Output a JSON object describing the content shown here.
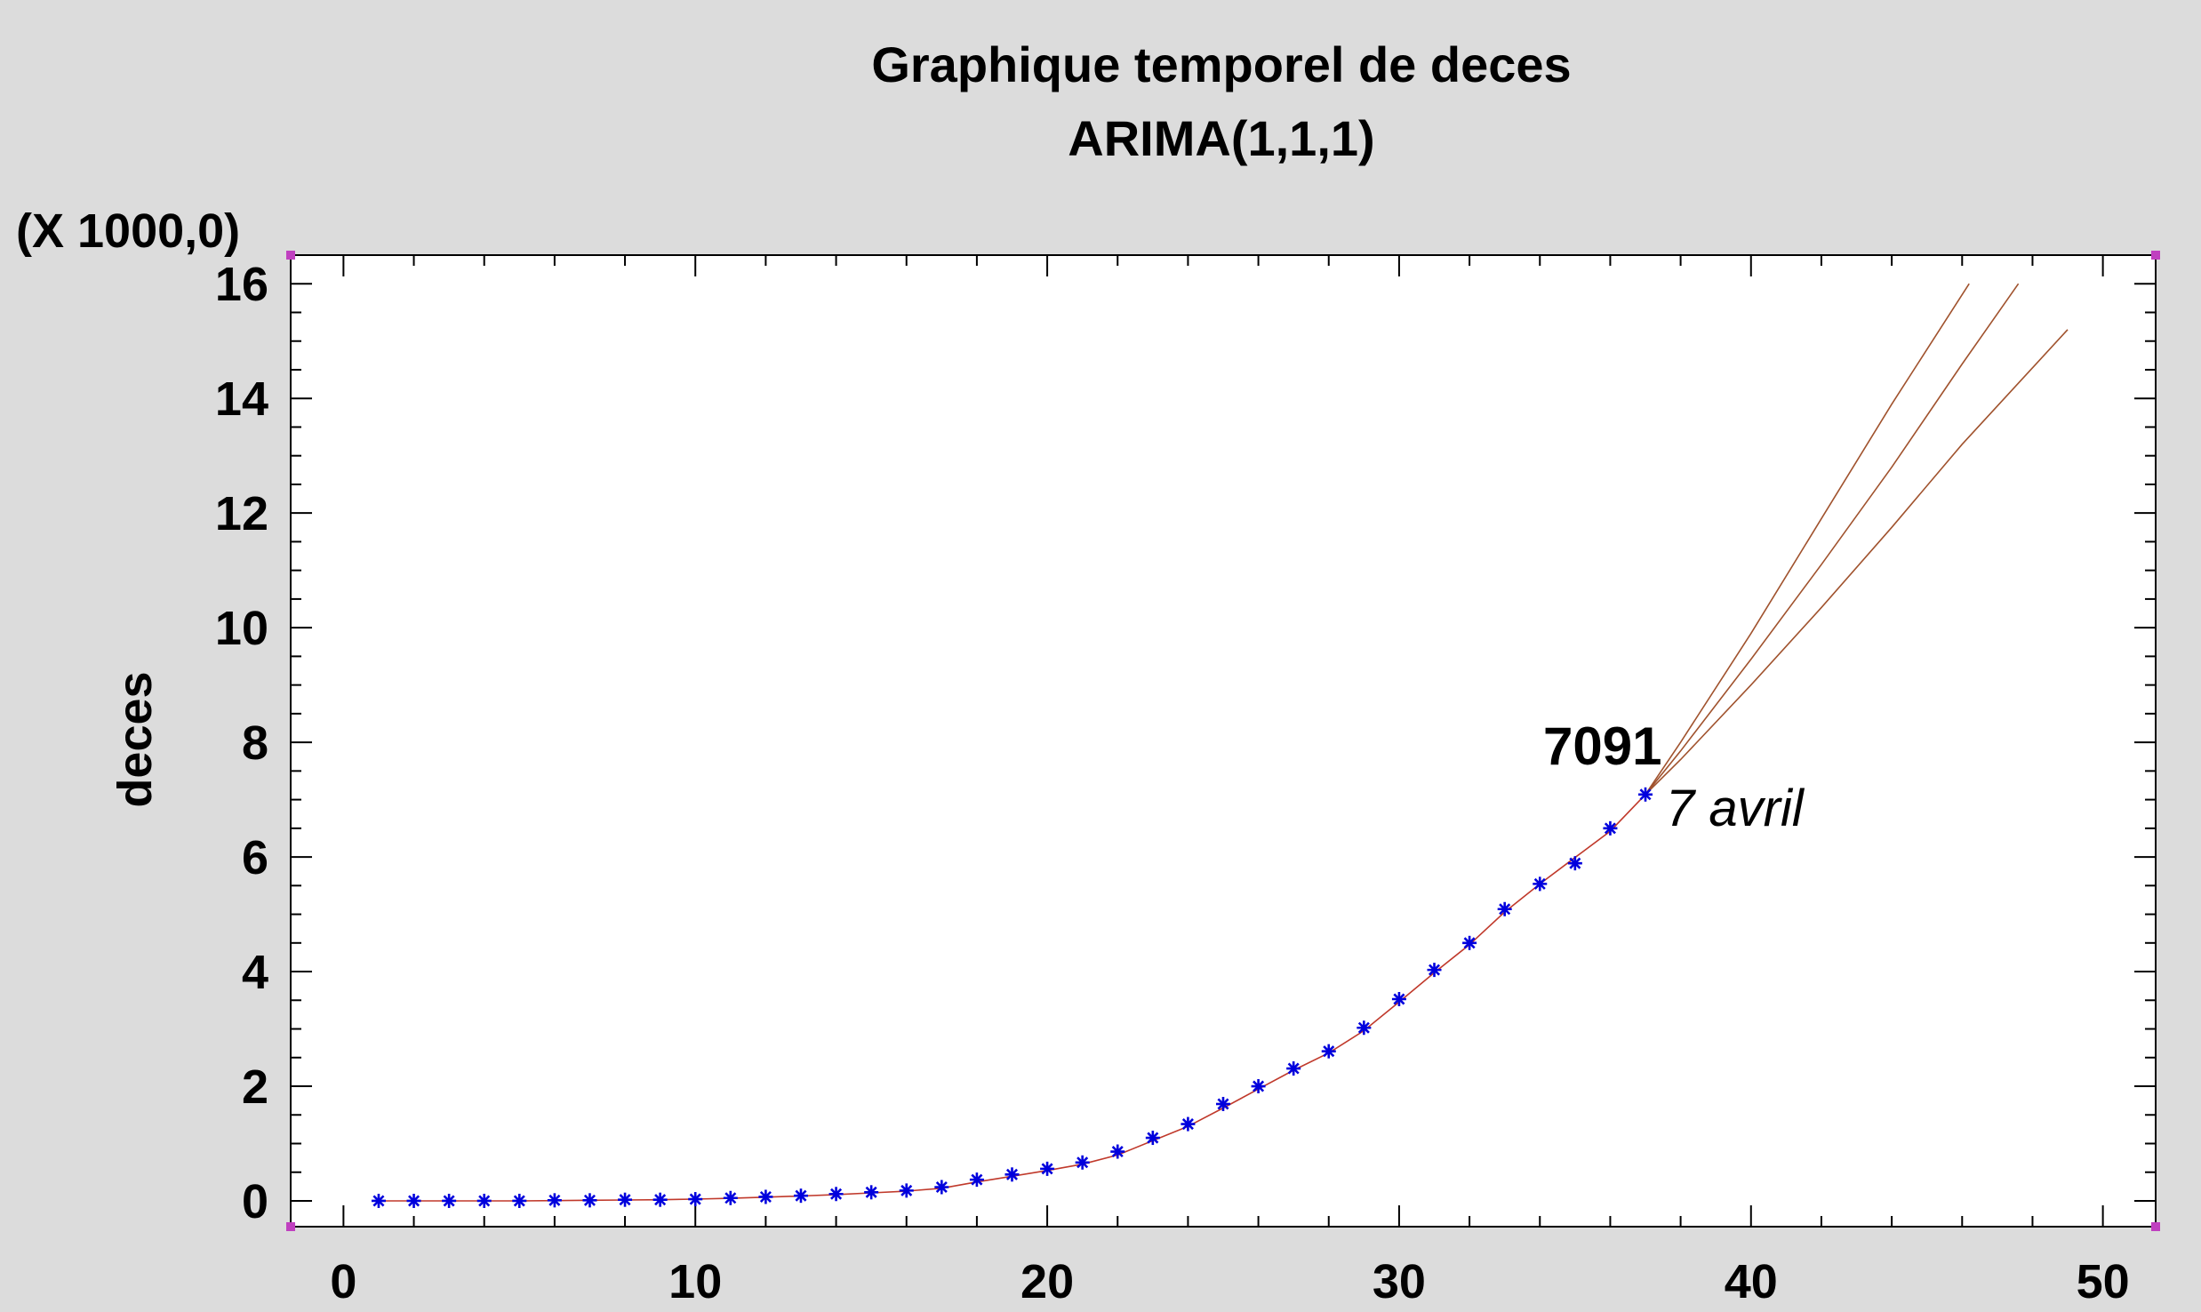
{
  "chart_data": {
    "type": "line",
    "title": "Graphique temporel de deces",
    "subtitle": "ARIMA(1,1,1)",
    "xlabel": "",
    "ylabel": "deces",
    "y_scale_note": "(X 1000,0)",
    "xlim": [
      -1.5,
      51.5
    ],
    "ylim": [
      -0.45,
      16.5
    ],
    "x_ticks": [
      0,
      10,
      20,
      30,
      40,
      50
    ],
    "y_ticks": [
      0,
      2,
      4,
      6,
      8,
      10,
      12,
      14,
      16
    ],
    "grid": false,
    "observed": {
      "marker": "asterisk",
      "color": "#0000dd",
      "x": [
        1,
        2,
        3,
        4,
        5,
        6,
        7,
        8,
        9,
        10,
        11,
        12,
        13,
        14,
        15,
        16,
        17,
        18,
        19,
        20,
        21,
        22,
        23,
        24,
        25,
        26,
        27,
        28,
        29,
        30,
        31,
        32,
        33,
        34,
        35,
        36,
        37
      ],
      "y": [
        0,
        0,
        0,
        0,
        0,
        0.01,
        0.01,
        0.02,
        0.02,
        0.03,
        0.05,
        0.07,
        0.09,
        0.12,
        0.15,
        0.18,
        0.24,
        0.37,
        0.46,
        0.56,
        0.67,
        0.86,
        1.1,
        1.34,
        1.69,
        2.0,
        2.31,
        2.61,
        3.02,
        3.52,
        4.03,
        4.5,
        5.09,
        5.53,
        5.89,
        6.5,
        7.09
      ]
    },
    "fitted": {
      "color": "#c0392b",
      "x": [
        1,
        2,
        3,
        4,
        5,
        6,
        7,
        8,
        9,
        10,
        11,
        12,
        13,
        14,
        15,
        16,
        17,
        18,
        19,
        20,
        21,
        22,
        23,
        24,
        25,
        26,
        27,
        28,
        29,
        30,
        31,
        32,
        33,
        34,
        35,
        36,
        37
      ],
      "y": [
        0,
        0,
        0,
        0,
        0,
        0.005,
        0.01,
        0.015,
        0.02,
        0.03,
        0.045,
        0.065,
        0.085,
        0.11,
        0.14,
        0.17,
        0.22,
        0.33,
        0.43,
        0.53,
        0.64,
        0.8,
        1.05,
        1.3,
        1.62,
        1.95,
        2.28,
        2.58,
        2.97,
        3.47,
        3.98,
        4.47,
        5.04,
        5.53,
        5.99,
        6.45,
        7.09
      ]
    },
    "forecast": {
      "color": "#a0522d",
      "upper": {
        "x": [
          37,
          38,
          40,
          42,
          44,
          46.2
        ],
        "y": [
          7.09,
          8.0,
          9.9,
          11.9,
          13.9,
          16.0
        ]
      },
      "center": {
        "x": [
          37,
          38,
          40,
          42,
          44,
          46,
          47.6
        ],
        "y": [
          7.09,
          7.85,
          9.45,
          11.1,
          12.8,
          14.6,
          16.0
        ]
      },
      "lower": {
        "x": [
          37,
          38,
          40,
          42,
          44,
          46,
          49
        ],
        "y": [
          7.09,
          7.7,
          9.0,
          10.35,
          11.75,
          13.2,
          15.2
        ]
      }
    },
    "annotations": [
      {
        "text": "7091",
        "style": "bold"
      },
      {
        "text": "7 avril",
        "style": "italic"
      }
    ]
  }
}
